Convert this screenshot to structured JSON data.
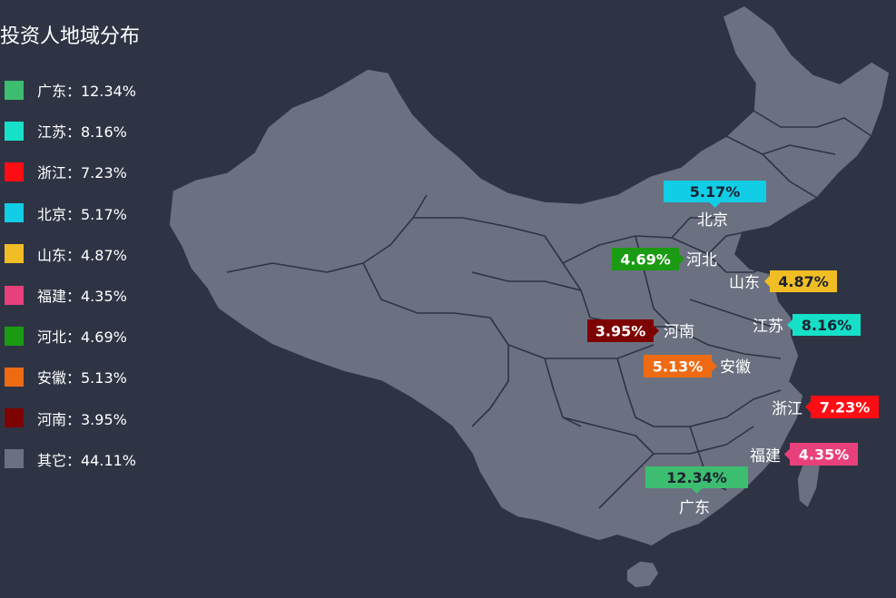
{
  "title": "投资人地域分布",
  "legend": [
    {
      "name": "广东",
      "value": "12.34%",
      "color": "#3dbd6f"
    },
    {
      "name": "江苏",
      "value": "8.16%",
      "color": "#16e0c8"
    },
    {
      "name": "浙江",
      "value": "7.23%",
      "color": "#ff0d14"
    },
    {
      "name": "北京",
      "value": "5.17%",
      "color": "#12cde6"
    },
    {
      "name": "山东",
      "value": "4.87%",
      "color": "#f0bd24"
    },
    {
      "name": "福建",
      "value": "4.35%",
      "color": "#e8407a"
    },
    {
      "name": "河北",
      "value": "4.69%",
      "color": "#1b9a13"
    },
    {
      "name": "安徽",
      "value": "5.13%",
      "color": "#ee6a13"
    },
    {
      "name": "河南",
      "value": "3.95%",
      "color": "#7d0303"
    },
    {
      "name": "其它",
      "value": "44.11%",
      "color": "#6b7181"
    }
  ],
  "separator": "：",
  "callouts": [
    {
      "province": "北京",
      "value": "5.17%",
      "color": "#12cde6",
      "text_color": "#1b2230"
    },
    {
      "province": "河北",
      "value": "4.69%",
      "color": "#1b9a13",
      "text_color": "#ffffff"
    },
    {
      "province": "山东",
      "value": "4.87%",
      "color": "#f0bd24",
      "text_color": "#1b2230"
    },
    {
      "province": "江苏",
      "value": "8.16%",
      "color": "#16e0c8",
      "text_color": "#1b2230"
    },
    {
      "province": "河南",
      "value": "3.95%",
      "color": "#7d0303",
      "text_color": "#ffffff"
    },
    {
      "province": "安徽",
      "value": "5.13%",
      "color": "#ee6a13",
      "text_color": "#ffffff"
    },
    {
      "province": "浙江",
      "value": "7.23%",
      "color": "#ff0d14",
      "text_color": "#ffffff"
    },
    {
      "province": "福建",
      "value": "4.35%",
      "color": "#e8407a",
      "text_color": "#ffffff"
    },
    {
      "province": "广东",
      "value": "12.34%",
      "color": "#3dbd6f",
      "text_color": "#1b2230"
    }
  ],
  "map_fill": "#6b7181",
  "background": "#2f3445"
}
